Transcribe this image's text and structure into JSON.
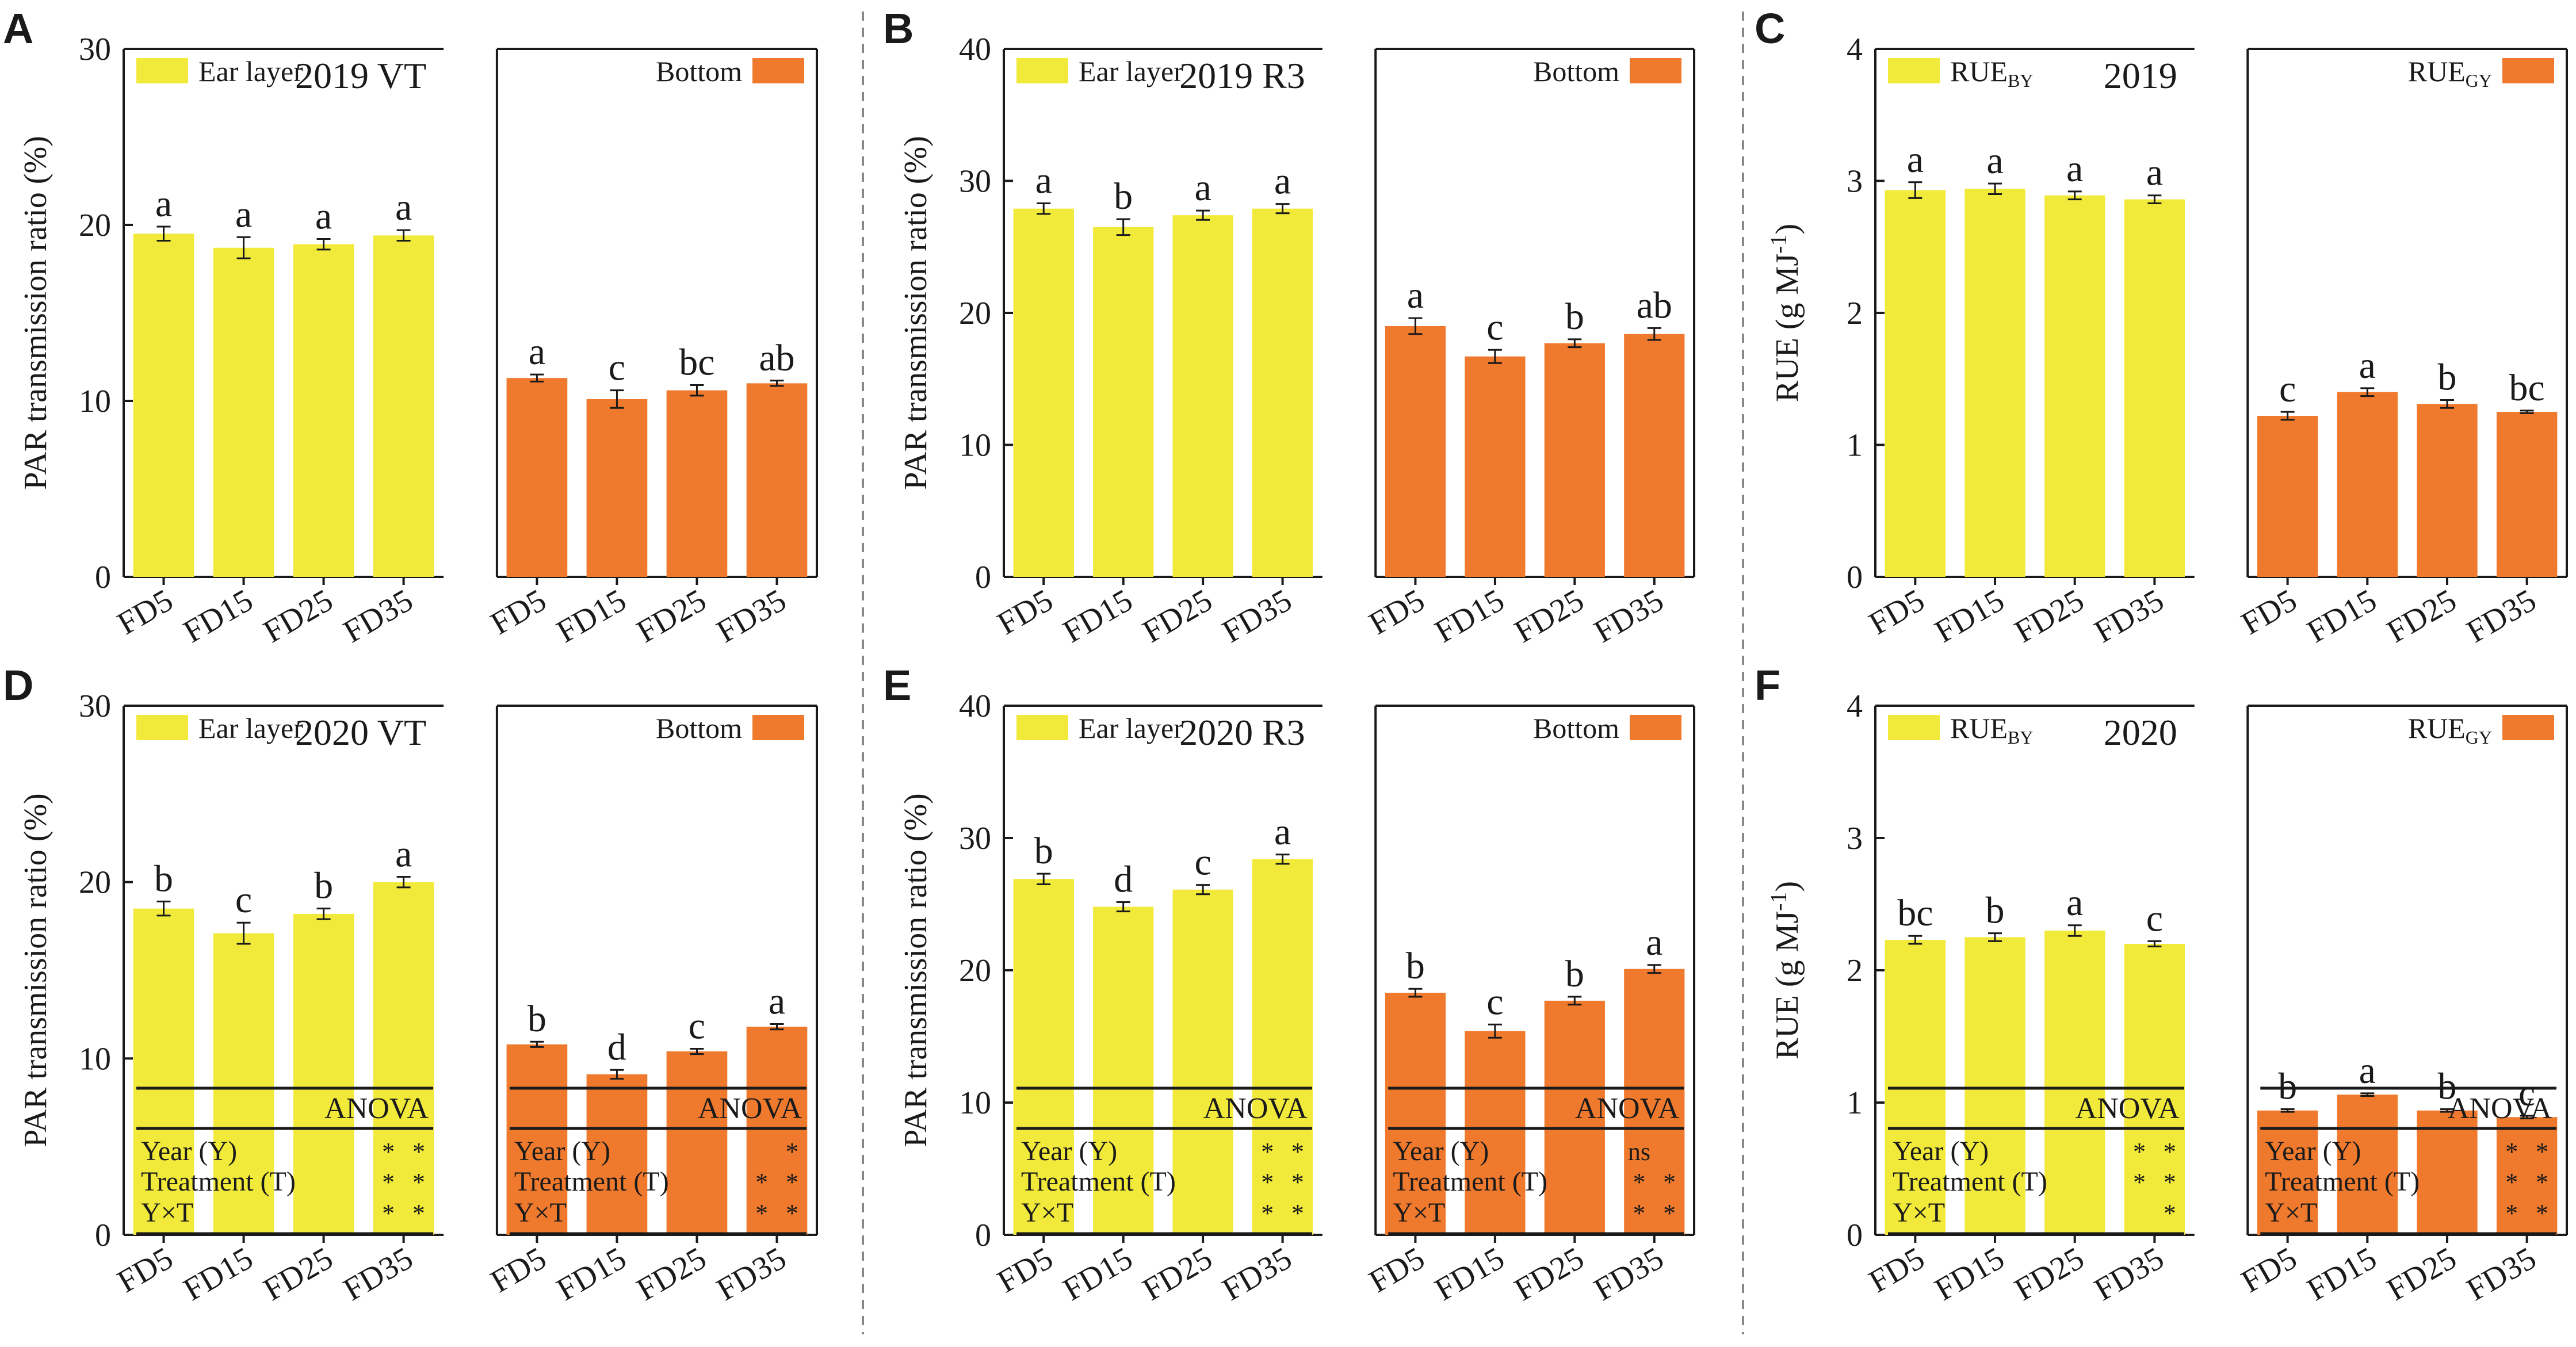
{
  "colors": {
    "ear": "#F2EA3B",
    "bottom": "#EF7A2E",
    "axis": "#1a1a1a",
    "divider": "#888888"
  },
  "chart_data": [
    {
      "panel": "A",
      "type": "bar",
      "title": "2019 VT",
      "ylabel": "PAR transmission ratio (%)",
      "ylim": [
        0,
        30
      ],
      "yticks": [
        0,
        10,
        20,
        30
      ],
      "categories": [
        "FD5",
        "FD15",
        "FD25",
        "FD35"
      ],
      "series": [
        {
          "name": "Ear layer",
          "legend": "Ear layer",
          "values": [
            19.5,
            18.7,
            18.9,
            19.4
          ],
          "errors": [
            0.4,
            0.6,
            0.3,
            0.3
          ],
          "letters": [
            "a",
            "a",
            "a",
            "a"
          ]
        },
        {
          "name": "Bottom",
          "legend": "Bottom",
          "values": [
            11.3,
            10.1,
            10.6,
            11.0
          ],
          "errors": [
            0.2,
            0.5,
            0.3,
            0.15
          ],
          "letters": [
            "a",
            "c",
            "bc",
            "ab"
          ]
        }
      ]
    },
    {
      "panel": "B",
      "type": "bar",
      "title": "2019 R3",
      "ylabel": "PAR transmission ratio (%)",
      "ylim": [
        0,
        40
      ],
      "yticks": [
        0,
        10,
        20,
        30,
        40
      ],
      "categories": [
        "FD5",
        "FD15",
        "FD25",
        "FD35"
      ],
      "series": [
        {
          "name": "Ear layer",
          "legend": "Ear layer",
          "values": [
            27.9,
            26.5,
            27.4,
            27.9
          ],
          "errors": [
            0.4,
            0.6,
            0.35,
            0.35
          ],
          "letters": [
            "a",
            "b",
            "a",
            "a"
          ]
        },
        {
          "name": "Bottom",
          "legend": "Bottom",
          "values": [
            19.0,
            16.7,
            17.7,
            18.4
          ],
          "errors": [
            0.6,
            0.5,
            0.3,
            0.45
          ],
          "letters": [
            "a",
            "c",
            "b",
            "ab"
          ]
        }
      ]
    },
    {
      "panel": "C",
      "type": "bar",
      "title": "2019",
      "ylabel": "RUE (g MJ-1)",
      "ylim": [
        0,
        4
      ],
      "yticks": [
        0,
        1,
        2,
        3,
        4
      ],
      "categories": [
        "FD5",
        "FD15",
        "FD25",
        "FD35"
      ],
      "series": [
        {
          "name": "RUE_BY",
          "legend": "RUE",
          "legend_sub": "BY",
          "values": [
            2.93,
            2.94,
            2.89,
            2.86
          ],
          "errors": [
            0.06,
            0.04,
            0.03,
            0.03
          ],
          "letters": [
            "a",
            "a",
            "a",
            "a"
          ]
        },
        {
          "name": "RUE_GY",
          "legend": "RUE",
          "legend_sub": "GY",
          "values": [
            1.22,
            1.4,
            1.31,
            1.25
          ],
          "errors": [
            0.03,
            0.03,
            0.03,
            0.01
          ],
          "letters": [
            "c",
            "a",
            "b",
            "bc"
          ]
        }
      ]
    },
    {
      "panel": "D",
      "type": "bar",
      "title": "2020 VT",
      "ylabel": "PAR transmission ratio (%)",
      "ylim": [
        0,
        30
      ],
      "yticks": [
        0,
        10,
        20,
        30
      ],
      "categories": [
        "FD5",
        "FD15",
        "FD25",
        "FD35"
      ],
      "series": [
        {
          "name": "Ear layer",
          "legend": "Ear layer",
          "values": [
            18.5,
            17.1,
            18.2,
            20.0
          ],
          "errors": [
            0.4,
            0.6,
            0.3,
            0.3
          ],
          "letters": [
            "b",
            "c",
            "b",
            "a"
          ]
        },
        {
          "name": "Bottom",
          "legend": "Bottom",
          "values": [
            10.8,
            9.1,
            10.4,
            11.8
          ],
          "errors": [
            0.15,
            0.25,
            0.15,
            0.15
          ],
          "letters": [
            "b",
            "d",
            "c",
            "a"
          ]
        }
      ],
      "anova": [
        {
          "title": "ANOVA",
          "rows": [
            [
              "Year (Y)",
              "*",
              "*"
            ],
            [
              "Treatment (T)",
              "*",
              "*"
            ],
            [
              "Y×T",
              "*",
              "*"
            ]
          ]
        },
        {
          "title": "ANOVA",
          "rows": [
            [
              "Year (Y)",
              "",
              "*"
            ],
            [
              "Treatment (T)",
              "*",
              "*"
            ],
            [
              "Y×T",
              "*",
              "*"
            ]
          ]
        }
      ]
    },
    {
      "panel": "E",
      "type": "bar",
      "title": "2020 R3",
      "ylabel": "PAR transmission ratio (%)",
      "ylim": [
        0,
        40
      ],
      "yticks": [
        0,
        10,
        20,
        30,
        40
      ],
      "categories": [
        "FD5",
        "FD15",
        "FD25",
        "FD35"
      ],
      "series": [
        {
          "name": "Ear layer",
          "legend": "Ear layer",
          "values": [
            26.9,
            24.8,
            26.1,
            28.4
          ],
          "errors": [
            0.4,
            0.35,
            0.35,
            0.35
          ],
          "letters": [
            "b",
            "d",
            "c",
            "a"
          ]
        },
        {
          "name": "Bottom",
          "legend": "Bottom",
          "values": [
            18.3,
            15.4,
            17.7,
            20.1
          ],
          "errors": [
            0.3,
            0.5,
            0.3,
            0.3
          ],
          "letters": [
            "b",
            "c",
            "b",
            "a"
          ]
        }
      ],
      "anova": [
        {
          "title": "ANOVA",
          "rows": [
            [
              "Year (Y)",
              "*",
              "*"
            ],
            [
              "Treatment (T)",
              "*",
              "*"
            ],
            [
              "Y×T",
              "*",
              "*"
            ]
          ]
        },
        {
          "title": "ANOVA",
          "rows": [
            [
              "Year (Y)",
              "ns",
              ""
            ],
            [
              "Treatment (T)",
              "*",
              "*"
            ],
            [
              "Y×T",
              "*",
              "*"
            ]
          ]
        }
      ]
    },
    {
      "panel": "F",
      "type": "bar",
      "title": "2020",
      "ylabel": "RUE (g MJ-1)",
      "ylim": [
        0,
        4
      ],
      "yticks": [
        0,
        1,
        2,
        3,
        4
      ],
      "categories": [
        "FD5",
        "FD15",
        "FD25",
        "FD35"
      ],
      "series": [
        {
          "name": "RUE_BY",
          "legend": "RUE",
          "legend_sub": "BY",
          "values": [
            2.23,
            2.25,
            2.3,
            2.2
          ],
          "errors": [
            0.03,
            0.03,
            0.04,
            0.02
          ],
          "letters": [
            "bc",
            "b",
            "a",
            "c"
          ]
        },
        {
          "name": "RUE_GY",
          "legend": "RUE",
          "legend_sub": "GY",
          "values": [
            0.94,
            1.06,
            0.94,
            0.89
          ],
          "errors": [
            0.01,
            0.01,
            0.01,
            0.01
          ],
          "letters": [
            "b",
            "a",
            "b",
            "c"
          ]
        }
      ],
      "anova": [
        {
          "title": "ANOVA",
          "rows": [
            [
              "Year (Y)",
              "*",
              "*"
            ],
            [
              "Treatment (T)",
              "*",
              "*"
            ],
            [
              "Y×T",
              "",
              "*"
            ]
          ]
        },
        {
          "title": "ANOVA",
          "rows": [
            [
              "Year (Y)",
              "*",
              "*"
            ],
            [
              "Treatment (T)",
              "*",
              "*"
            ],
            [
              "Y×T",
              "*",
              "*"
            ]
          ]
        }
      ]
    }
  ]
}
